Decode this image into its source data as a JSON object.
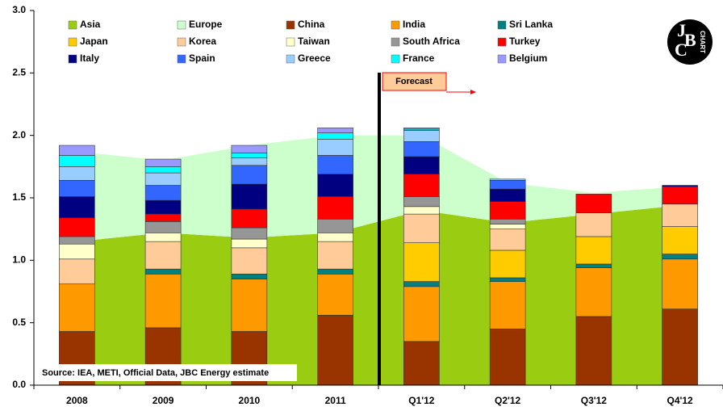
{
  "chart_data": {
    "type": "bar",
    "categories": [
      "2008",
      "2009",
      "2010",
      "2011",
      "Q1'12",
      "Q2'12",
      "Q3'12",
      "Q4'12"
    ],
    "ylim": [
      0,
      3.0
    ],
    "yticks": [
      {
        "value": 0,
        "label": "0.0"
      },
      0.5,
      {
        "value": 1,
        "label": "1.0"
      },
      1.5,
      {
        "value": 2,
        "label": "2.0"
      },
      2.5,
      {
        "value": 3,
        "label": "3.0"
      }
    ],
    "series": [
      {
        "name": "Asia",
        "color": "#9acd12",
        "kind": "area",
        "values": [
          1.15,
          1.22,
          1.18,
          1.22,
          1.4,
          1.3,
          1.37,
          1.44
        ]
      },
      {
        "name": "Europe",
        "color": "#ccffcc",
        "kind": "area",
        "values": [
          0.72,
          0.58,
          0.74,
          0.78,
          0.6,
          0.32,
          0.17,
          0.15
        ]
      },
      {
        "name": "China",
        "color": "#993300",
        "values": [
          0.43,
          0.46,
          0.43,
          0.56,
          0.35,
          0.45,
          0.55,
          0.61
        ]
      },
      {
        "name": "India",
        "color": "#ff9900",
        "values": [
          0.38,
          0.43,
          0.42,
          0.33,
          0.44,
          0.38,
          0.39,
          0.4
        ]
      },
      {
        "name": "Sri Lanka",
        "color": "#008080",
        "values": [
          0,
          0.04,
          0.04,
          0.04,
          0.04,
          0.03,
          0.03,
          0.04
        ]
      },
      {
        "name": "Japan",
        "color": "#ffcc00",
        "values": [
          0,
          0,
          0,
          0,
          0.31,
          0.22,
          0.22,
          0.22
        ]
      },
      {
        "name": "Korea",
        "color": "#ffcc99",
        "values": [
          0.2,
          0.22,
          0.21,
          0.22,
          0.23,
          0.17,
          0.19,
          0.18
        ]
      },
      {
        "name": "Taiwan",
        "color": "#ffffcc",
        "values": [
          0.12,
          0.07,
          0.07,
          0.07,
          0.06,
          0.04,
          0,
          0
        ]
      },
      {
        "name": "South Africa",
        "color": "#969696",
        "values": [
          0.06,
          0.09,
          0.09,
          0.11,
          0.08,
          0.04,
          0,
          0
        ]
      },
      {
        "name": "Turkey",
        "color": "#ff0000",
        "values": [
          0.15,
          0.06,
          0.15,
          0.18,
          0.18,
          0.14,
          0.15,
          0.14
        ]
      },
      {
        "name": "Italy",
        "color": "#000080",
        "values": [
          0.17,
          0.11,
          0.2,
          0.18,
          0.14,
          0.1,
          0,
          0.01
        ]
      },
      {
        "name": "Spain",
        "color": "#3366ff",
        "values": [
          0.13,
          0.12,
          0.15,
          0.15,
          0.12,
          0.07,
          0,
          0
        ]
      },
      {
        "name": "Greece",
        "color": "#99ccff",
        "values": [
          0.11,
          0.1,
          0.06,
          0.13,
          0.09,
          0.01,
          0,
          0
        ]
      },
      {
        "name": "France",
        "color": "#00ffff",
        "values": [
          0.09,
          0.05,
          0.04,
          0.05,
          0.01,
          0,
          0,
          0
        ]
      },
      {
        "name": "Belgium",
        "color": "#9999ff",
        "values": [
          0.08,
          0.06,
          0.06,
          0.04,
          0.01,
          0,
          0,
          0
        ]
      }
    ],
    "annotations": {
      "forecast": "Forecast",
      "source": "Source: IEA, METI, Official Data, JBC Energy estimate"
    },
    "logo": {
      "letters": [
        "J",
        "B",
        "C"
      ],
      "word": "CHART"
    }
  }
}
